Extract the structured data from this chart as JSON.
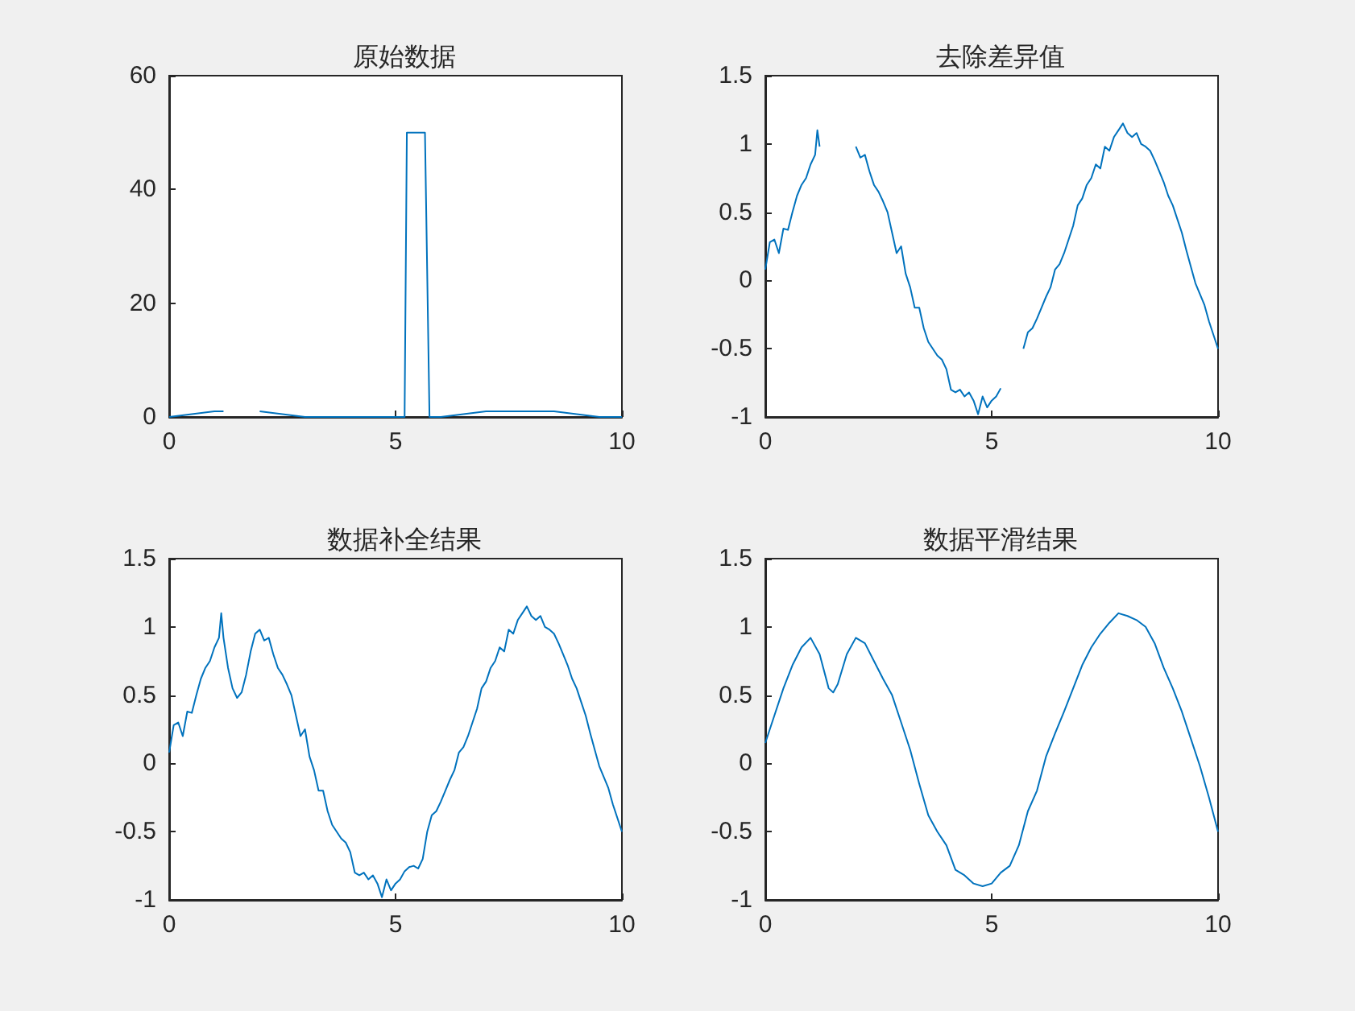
{
  "chart_data": [
    {
      "type": "line",
      "title": "原始数据",
      "color": "#0072bd",
      "marker": "none",
      "grid": false,
      "xlim": [
        0,
        10
      ],
      "ylim": [
        0,
        60
      ],
      "xticks": [
        0,
        5,
        10
      ],
      "yticks": [
        0,
        20,
        40,
        60
      ],
      "x": [
        0,
        0.5,
        1.0,
        1.2,
        1.3,
        2.0,
        2.5,
        3.0,
        3.5,
        4.0,
        4.5,
        5.0,
        5.2,
        5.25,
        5.65,
        5.75,
        6.0,
        6.5,
        7.0,
        7.5,
        8.0,
        8.5,
        9.0,
        9.5,
        10
      ],
      "values": [
        0,
        0.5,
        1,
        1,
        null,
        1,
        0.5,
        0,
        0,
        0,
        0,
        0,
        0,
        50,
        50,
        0,
        0,
        0.5,
        1,
        1,
        1,
        1,
        0.5,
        0,
        0
      ]
    },
    {
      "type": "line",
      "title": "去除差异值",
      "color": "#0072bd",
      "marker": "none",
      "grid": false,
      "xlim": [
        0,
        10
      ],
      "ylim": [
        -1,
        1.5
      ],
      "xticks": [
        0,
        5,
        10
      ],
      "yticks": [
        -1,
        -0.5,
        0,
        0.5,
        1,
        1.5
      ],
      "x": [
        0,
        0.1,
        0.2,
        0.3,
        0.4,
        0.5,
        0.6,
        0.7,
        0.8,
        0.9,
        1.0,
        1.1,
        1.15,
        1.2,
        1.3,
        2.0,
        2.1,
        2.2,
        2.3,
        2.4,
        2.5,
        2.6,
        2.7,
        2.8,
        2.9,
        3.0,
        3.1,
        3.2,
        3.3,
        3.4,
        3.5,
        3.6,
        3.7,
        3.8,
        3.9,
        4.0,
        4.1,
        4.2,
        4.3,
        4.4,
        4.5,
        4.6,
        4.7,
        4.8,
        4.9,
        5.0,
        5.1,
        5.2,
        5.3,
        5.7,
        5.8,
        5.9,
        6.0,
        6.1,
        6.2,
        6.3,
        6.4,
        6.5,
        6.6,
        6.7,
        6.8,
        6.9,
        7.0,
        7.1,
        7.2,
        7.3,
        7.4,
        7.5,
        7.6,
        7.7,
        7.8,
        7.9,
        8.0,
        8.1,
        8.2,
        8.3,
        8.4,
        8.5,
        8.6,
        8.7,
        8.8,
        8.9,
        9.0,
        9.1,
        9.2,
        9.3,
        9.4,
        9.5,
        9.6,
        9.7,
        9.8,
        9.9,
        10
      ],
      "values": [
        0.08,
        0.28,
        0.3,
        0.2,
        0.38,
        0.37,
        0.5,
        0.62,
        0.7,
        0.75,
        0.85,
        0.92,
        1.1,
        0.98,
        null,
        0.98,
        0.9,
        0.92,
        0.8,
        0.7,
        0.65,
        0.58,
        0.5,
        0.35,
        0.2,
        0.25,
        0.05,
        -0.05,
        -0.2,
        -0.2,
        -0.35,
        -0.45,
        -0.5,
        -0.55,
        -0.58,
        -0.65,
        -0.8,
        -0.82,
        -0.8,
        -0.85,
        -0.82,
        -0.88,
        -0.98,
        -0.85,
        -0.93,
        -0.88,
        -0.85,
        -0.79,
        null,
        -0.5,
        -0.38,
        -0.35,
        -0.28,
        -0.2,
        -0.12,
        -0.05,
        0.08,
        0.12,
        0.2,
        0.3,
        0.4,
        0.55,
        0.6,
        0.7,
        0.75,
        0.85,
        0.82,
        0.98,
        0.95,
        1.05,
        1.1,
        1.15,
        1.08,
        1.05,
        1.08,
        1.0,
        0.98,
        0.95,
        0.88,
        0.8,
        0.72,
        0.62,
        0.55,
        0.45,
        0.35,
        0.22,
        0.1,
        -0.02,
        -0.1,
        -0.18,
        -0.3,
        -0.4,
        -0.5
      ]
    },
    {
      "type": "line",
      "title": "数据补全结果",
      "color": "#0072bd",
      "marker": "none",
      "grid": false,
      "xlim": [
        0,
        10
      ],
      "ylim": [
        -1,
        1.5
      ],
      "xticks": [
        0,
        5,
        10
      ],
      "yticks": [
        -1,
        -0.5,
        0,
        0.5,
        1,
        1.5
      ],
      "x": [
        0,
        0.1,
        0.2,
        0.3,
        0.4,
        0.5,
        0.6,
        0.7,
        0.8,
        0.9,
        1.0,
        1.1,
        1.15,
        1.2,
        1.3,
        1.4,
        1.5,
        1.6,
        1.7,
        1.8,
        1.9,
        2.0,
        2.1,
        2.2,
        2.3,
        2.4,
        2.5,
        2.6,
        2.7,
        2.8,
        2.9,
        3.0,
        3.1,
        3.2,
        3.3,
        3.4,
        3.5,
        3.6,
        3.7,
        3.8,
        3.9,
        4.0,
        4.1,
        4.2,
        4.3,
        4.4,
        4.5,
        4.6,
        4.7,
        4.8,
        4.9,
        5.0,
        5.1,
        5.2,
        5.3,
        5.4,
        5.5,
        5.6,
        5.7,
        5.8,
        5.9,
        6.0,
        6.1,
        6.2,
        6.3,
        6.4,
        6.5,
        6.6,
        6.7,
        6.8,
        6.9,
        7.0,
        7.1,
        7.2,
        7.3,
        7.4,
        7.5,
        7.6,
        7.7,
        7.8,
        7.9,
        8.0,
        8.1,
        8.2,
        8.3,
        8.4,
        8.5,
        8.6,
        8.7,
        8.8,
        8.9,
        9.0,
        9.1,
        9.2,
        9.3,
        9.4,
        9.5,
        9.6,
        9.7,
        9.8,
        9.9,
        10
      ],
      "values": [
        0.08,
        0.28,
        0.3,
        0.2,
        0.38,
        0.37,
        0.5,
        0.62,
        0.7,
        0.75,
        0.85,
        0.92,
        1.1,
        0.92,
        0.7,
        0.55,
        0.48,
        0.52,
        0.65,
        0.82,
        0.95,
        0.98,
        0.9,
        0.92,
        0.8,
        0.7,
        0.65,
        0.58,
        0.5,
        0.35,
        0.2,
        0.25,
        0.05,
        -0.05,
        -0.2,
        -0.2,
        -0.35,
        -0.45,
        -0.5,
        -0.55,
        -0.58,
        -0.65,
        -0.8,
        -0.82,
        -0.8,
        -0.85,
        -0.82,
        -0.88,
        -0.98,
        -0.85,
        -0.93,
        -0.88,
        -0.85,
        -0.79,
        -0.76,
        -0.75,
        -0.77,
        -0.7,
        -0.5,
        -0.38,
        -0.35,
        -0.28,
        -0.2,
        -0.12,
        -0.05,
        0.08,
        0.12,
        0.2,
        0.3,
        0.4,
        0.55,
        0.6,
        0.7,
        0.75,
        0.85,
        0.82,
        0.98,
        0.95,
        1.05,
        1.1,
        1.15,
        1.08,
        1.05,
        1.08,
        1.0,
        0.98,
        0.95,
        0.88,
        0.8,
        0.72,
        0.62,
        0.55,
        0.45,
        0.35,
        0.22,
        0.1,
        -0.02,
        -0.1,
        -0.18,
        -0.3,
        -0.4,
        -0.5
      ]
    },
    {
      "type": "line",
      "title": "数据平滑结果",
      "color": "#0072bd",
      "marker": "none",
      "grid": false,
      "xlim": [
        0,
        10
      ],
      "ylim": [
        -1,
        1.5
      ],
      "xticks": [
        0,
        5,
        10
      ],
      "yticks": [
        -1,
        -0.5,
        0,
        0.5,
        1,
        1.5
      ],
      "x": [
        0,
        0.2,
        0.4,
        0.6,
        0.8,
        1.0,
        1.2,
        1.4,
        1.5,
        1.6,
        1.8,
        2.0,
        2.2,
        2.4,
        2.6,
        2.8,
        3.0,
        3.2,
        3.4,
        3.6,
        3.8,
        4.0,
        4.2,
        4.4,
        4.6,
        4.8,
        5.0,
        5.2,
        5.4,
        5.6,
        5.8,
        6.0,
        6.2,
        6.4,
        6.6,
        6.8,
        7.0,
        7.2,
        7.4,
        7.6,
        7.8,
        8.0,
        8.2,
        8.4,
        8.6,
        8.8,
        9.0,
        9.2,
        9.4,
        9.6,
        9.8,
        10
      ],
      "values": [
        0.15,
        0.35,
        0.55,
        0.72,
        0.85,
        0.92,
        0.8,
        0.55,
        0.52,
        0.58,
        0.8,
        0.92,
        0.88,
        0.75,
        0.62,
        0.5,
        0.3,
        0.1,
        -0.15,
        -0.38,
        -0.5,
        -0.6,
        -0.78,
        -0.82,
        -0.88,
        -0.9,
        -0.88,
        -0.8,
        -0.75,
        -0.6,
        -0.35,
        -0.2,
        0.05,
        0.22,
        0.38,
        0.55,
        0.72,
        0.85,
        0.95,
        1.03,
        1.1,
        1.08,
        1.05,
        1.0,
        0.88,
        0.7,
        0.55,
        0.38,
        0.18,
        -0.02,
        -0.25,
        -0.5
      ]
    }
  ]
}
